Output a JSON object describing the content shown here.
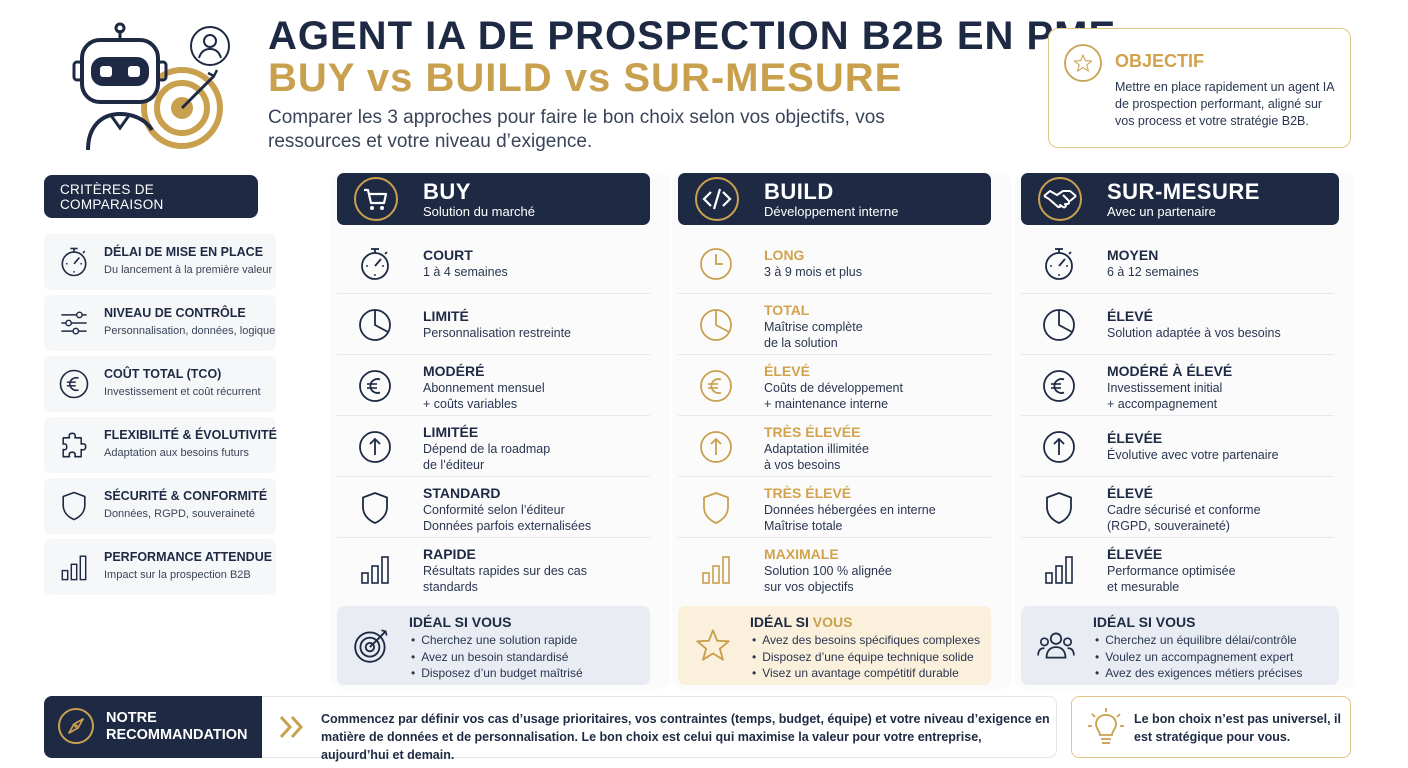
{
  "header": {
    "title_line1": "AGENT IA DE PROSPECTION B2B EN PME",
    "title_line2": "BUY vs BUILD vs SUR-MESURE",
    "subtitle": "Comparer les 3 approches pour faire le bon choix selon vos objectifs, vos ressources et votre niveau d’exigence."
  },
  "objective": {
    "title": "OBJECTIF",
    "text": "Mettre en place rapidement un agent IA de prospection performant, aligné sur vos process et votre stratégie B2B.",
    "icon": "star-icon"
  },
  "criteria": {
    "header": "CRITÈRES DE COMPARAISON",
    "items": [
      {
        "title": "DÉLAI DE MISE EN PLACE",
        "subtitle": "Du lancement à la première valeur",
        "icon": "stopwatch-icon"
      },
      {
        "title": "NIVEAU DE CONTRÔLE",
        "subtitle": "Personnalisation, données, logique",
        "icon": "sliders-icon"
      },
      {
        "title": "COÛT TOTAL (TCO)",
        "subtitle": "Investissement et coût récurrent",
        "icon": "euro-icon"
      },
      {
        "title": "FLEXIBILITÉ & ÉVOLUTIVITÉ",
        "subtitle": "Adaptation aux besoins futurs",
        "icon": "puzzle-icon"
      },
      {
        "title": "SÉCURITÉ & CONFORMITÉ",
        "subtitle": "Données, RGPD, souveraineté",
        "icon": "shield-icon"
      },
      {
        "title": "PERFORMANCE ATTENDUE",
        "subtitle": "Impact sur la prospection B2B",
        "icon": "bar-chart-icon"
      }
    ]
  },
  "columns": {
    "buy": {
      "title": "BUY",
      "subtitle": "Solution du marché",
      "icon": "cart-icon",
      "rows": [
        {
          "label": "COURT",
          "desc": "1 à 4 semaines"
        },
        {
          "label": "LIMITÉ",
          "desc": "Personnalisation restreinte"
        },
        {
          "label": "MODÉRÉ",
          "desc": "Abonnement mensuel\n+ coûts variables"
        },
        {
          "label": "LIMITÉE",
          "desc": "Dépend de la roadmap\nde l’éditeur"
        },
        {
          "label": "STANDARD",
          "desc": "Conformité selon l’éditeur\nDonnées parfois externalisées"
        },
        {
          "label": "RAPIDE",
          "desc": "Résultats rapides sur des cas\nstandards"
        }
      ],
      "ideal_title": "IDÉAL SI VOUS",
      "ideal_items": [
        "Cherchez une solution rapide",
        "Avez un besoin standardisé",
        "Disposez d’un budget maîtrisé"
      ],
      "ideal_icon": "target-icon"
    },
    "build": {
      "title": "BUILD",
      "subtitle": "Développement interne",
      "icon": "code-icon",
      "rows": [
        {
          "label": "LONG",
          "desc": "3 à 9 mois et plus"
        },
        {
          "label": "TOTAL",
          "desc": "Maîtrise complète\nde la solution"
        },
        {
          "label": "ÉLEVÉ",
          "desc": "Coûts de développement\n+ maintenance interne"
        },
        {
          "label": "TRÈS ÉLEVÉE",
          "desc": "Adaptation illimitée\nà vos besoins"
        },
        {
          "label": "TRÈS ÉLEVÉ",
          "desc": "Données hébergées en interne\nMaîtrise totale"
        },
        {
          "label": "MAXIMALE",
          "desc": "Solution 100 % alignée\nsur vos objectifs"
        }
      ],
      "ideal_title_a": "IDÉAL SI ",
      "ideal_title_b": "VOUS",
      "ideal_items": [
        "Avez des besoins spécifiques complexes",
        "Disposez d’une équipe technique solide",
        "Visez un avantage compétitif durable"
      ],
      "ideal_icon": "star-icon"
    },
    "custom": {
      "title": "SUR-MESURE",
      "subtitle": "Avec un partenaire",
      "icon": "handshake-icon",
      "rows": [
        {
          "label": "MOYEN",
          "desc": "6 à 12 semaines"
        },
        {
          "label": "ÉLEVÉ",
          "desc": "Solution adaptée à vos besoins"
        },
        {
          "label": "MODÉRÉ À ÉLEVÉ",
          "desc": "Investissement initial\n+ accompagnement"
        },
        {
          "label": "ÉLEVÉE",
          "desc": "Évolutive avec votre partenaire"
        },
        {
          "label": "ÉLEVÉ",
          "desc": "Cadre sécurisé et conforme\n(RGPD, souveraineté)"
        },
        {
          "label": "ÉLEVÉE",
          "desc": "Performance optimisée\net mesurable"
        }
      ],
      "ideal_title": "IDÉAL SI VOUS",
      "ideal_items": [
        "Cherchez un équilibre délai/contrôle",
        "Voulez un accompagnement expert",
        "Avez des exigences métiers précises"
      ],
      "ideal_icon": "team-icon"
    }
  },
  "recommendation": {
    "title": "NOTRE RECOMMANDATION",
    "text": "Commencez par définir vos cas d’usage prioritaires, vos contraintes (temps, budget, équipe) et votre niveau d’exigence en matière de données et de personnalisation. Le bon choix est celui qui maximise la valeur pour votre entreprise, aujourd’hui et demain.",
    "icon": "compass-icon"
  },
  "tip": {
    "text": "Le bon choix n’est pas universel, il est stratégique pour vous.",
    "icon": "lightbulb-icon"
  },
  "colors": {
    "navy": "#1e2a44",
    "gold": "#c9a04e",
    "gold_light_bg": "#fbf0dc",
    "blue_light_bg": "#e9edf3"
  }
}
